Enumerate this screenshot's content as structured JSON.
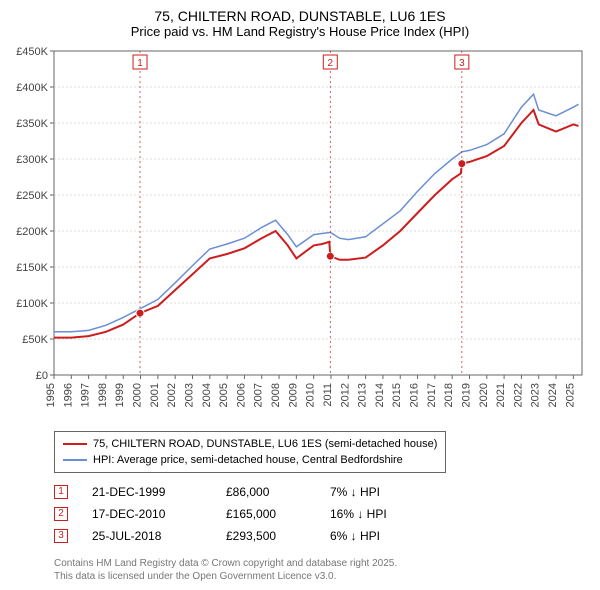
{
  "title": "75, CHILTERN ROAD, DUNSTABLE, LU6 1ES",
  "subtitle": "Price paid vs. HM Land Registry's House Price Index (HPI)",
  "chart": {
    "type": "line",
    "background_color": "#ffffff",
    "gridline_color": "#cfcfcf",
    "axis_color": "#666666",
    "label_color": "#444444",
    "label_fontsize": 11,
    "x": {
      "min": 1995,
      "max": 2025.5,
      "ticks": [
        1995,
        1996,
        1997,
        1998,
        1999,
        2000,
        2001,
        2002,
        2003,
        2004,
        2005,
        2006,
        2007,
        2008,
        2009,
        2010,
        2011,
        2012,
        2013,
        2014,
        2015,
        2016,
        2017,
        2018,
        2019,
        2020,
        2021,
        2022,
        2023,
        2024,
        2025
      ],
      "tick_labels": [
        "1995",
        "1996",
        "1997",
        "1998",
        "1999",
        "2000",
        "2001",
        "2002",
        "2003",
        "2004",
        "2005",
        "2006",
        "2007",
        "2008",
        "2009",
        "2010",
        "2011",
        "2012",
        "2013",
        "2014",
        "2015",
        "2016",
        "2017",
        "2018",
        "2019",
        "2020",
        "2021",
        "2022",
        "2023",
        "2024",
        "2025"
      ]
    },
    "y": {
      "min": 0,
      "max": 450000,
      "ticks": [
        0,
        50000,
        100000,
        150000,
        200000,
        250000,
        300000,
        350000,
        400000,
        450000
      ],
      "tick_labels": [
        "£0",
        "£50K",
        "£100K",
        "£150K",
        "£200K",
        "£250K",
        "£300K",
        "£350K",
        "£400K",
        "£450K"
      ]
    },
    "series": [
      {
        "id": "hpi",
        "label": "HPI: Average price, semi-detached house, Central Bedfordshire",
        "color": "#6a8fd4",
        "line_width": 1.5,
        "points": [
          [
            1995,
            60000
          ],
          [
            1996,
            60000
          ],
          [
            1997,
            62000
          ],
          [
            1998,
            69000
          ],
          [
            1999,
            80000
          ],
          [
            1999.97,
            92000
          ],
          [
            2001,
            105000
          ],
          [
            2002,
            128000
          ],
          [
            2003,
            152000
          ],
          [
            2004,
            175000
          ],
          [
            2005,
            182000
          ],
          [
            2006,
            190000
          ],
          [
            2007,
            205000
          ],
          [
            2007.8,
            215000
          ],
          [
            2008.5,
            195000
          ],
          [
            2009,
            178000
          ],
          [
            2010,
            195000
          ],
          [
            2010.96,
            198000
          ],
          [
            2011.5,
            190000
          ],
          [
            2012,
            188000
          ],
          [
            2013,
            192000
          ],
          [
            2014,
            210000
          ],
          [
            2015,
            228000
          ],
          [
            2016,
            255000
          ],
          [
            2017,
            280000
          ],
          [
            2018,
            300000
          ],
          [
            2018.56,
            310000
          ],
          [
            2019,
            312000
          ],
          [
            2020,
            320000
          ],
          [
            2021,
            335000
          ],
          [
            2022,
            372000
          ],
          [
            2022.7,
            390000
          ],
          [
            2023,
            368000
          ],
          [
            2024,
            360000
          ],
          [
            2025,
            372000
          ],
          [
            2025.3,
            376000
          ]
        ]
      },
      {
        "id": "paid",
        "label": "75, CHILTERN ROAD, DUNSTABLE, LU6 1ES (semi-detached house)",
        "color": "#cc1e1e",
        "line_width": 2,
        "points": [
          [
            1995,
            52000
          ],
          [
            1996,
            52000
          ],
          [
            1997,
            54000
          ],
          [
            1998,
            60000
          ],
          [
            1999,
            70000
          ],
          [
            1999.97,
            86000
          ],
          [
            2001,
            96000
          ],
          [
            2002,
            118000
          ],
          [
            2003,
            140000
          ],
          [
            2004,
            162000
          ],
          [
            2005,
            168000
          ],
          [
            2006,
            176000
          ],
          [
            2007,
            190000
          ],
          [
            2007.8,
            200000
          ],
          [
            2008.5,
            180000
          ],
          [
            2009,
            162000
          ],
          [
            2010,
            180000
          ],
          [
            2010.5,
            182000
          ],
          [
            2010.9,
            185000
          ],
          [
            2010.96,
            165000
          ],
          [
            2011.5,
            160000
          ],
          [
            2012,
            160000
          ],
          [
            2013,
            163000
          ],
          [
            2014,
            180000
          ],
          [
            2015,
            200000
          ],
          [
            2016,
            225000
          ],
          [
            2017,
            250000
          ],
          [
            2018,
            272000
          ],
          [
            2018.5,
            280000
          ],
          [
            2018.56,
            293500
          ],
          [
            2019,
            296000
          ],
          [
            2020,
            304000
          ],
          [
            2021,
            318000
          ],
          [
            2022,
            350000
          ],
          [
            2022.7,
            368000
          ],
          [
            2023,
            348000
          ],
          [
            2024,
            338000
          ],
          [
            2025,
            348000
          ],
          [
            2025.3,
            346000
          ]
        ],
        "markers": [
          {
            "x": 1999.97,
            "y": 86000
          },
          {
            "x": 2010.96,
            "y": 165000
          },
          {
            "x": 2018.56,
            "y": 293500
          }
        ]
      }
    ],
    "callouts": [
      {
        "num": "1",
        "x": 1999.97,
        "color": "#cc1e1e"
      },
      {
        "num": "2",
        "x": 2010.96,
        "color": "#cc1e1e"
      },
      {
        "num": "3",
        "x": 2018.56,
        "color": "#cc1e1e"
      }
    ]
  },
  "legend": {
    "items": [
      {
        "swatch_color": "#cc1e1e",
        "label": "75, CHILTERN ROAD, DUNSTABLE, LU6 1ES (semi-detached house)"
      },
      {
        "swatch_color": "#6a8fd4",
        "label": "HPI: Average price, semi-detached house, Central Bedfordshire"
      }
    ]
  },
  "sale_events": [
    {
      "num": "1",
      "date": "21-DEC-1999",
      "price": "£86,000",
      "diff": "7% ↓ HPI",
      "color": "#cc1e1e"
    },
    {
      "num": "2",
      "date": "17-DEC-2010",
      "price": "£165,000",
      "diff": "16% ↓ HPI",
      "color": "#cc1e1e"
    },
    {
      "num": "3",
      "date": "25-JUL-2018",
      "price": "£293,500",
      "diff": "6% ↓ HPI",
      "color": "#cc1e1e"
    }
  ],
  "fineprint": {
    "line1": "Contains HM Land Registry data © Crown copyright and database right 2025.",
    "line2": "This data is licensed under the Open Government Licence v3.0."
  }
}
